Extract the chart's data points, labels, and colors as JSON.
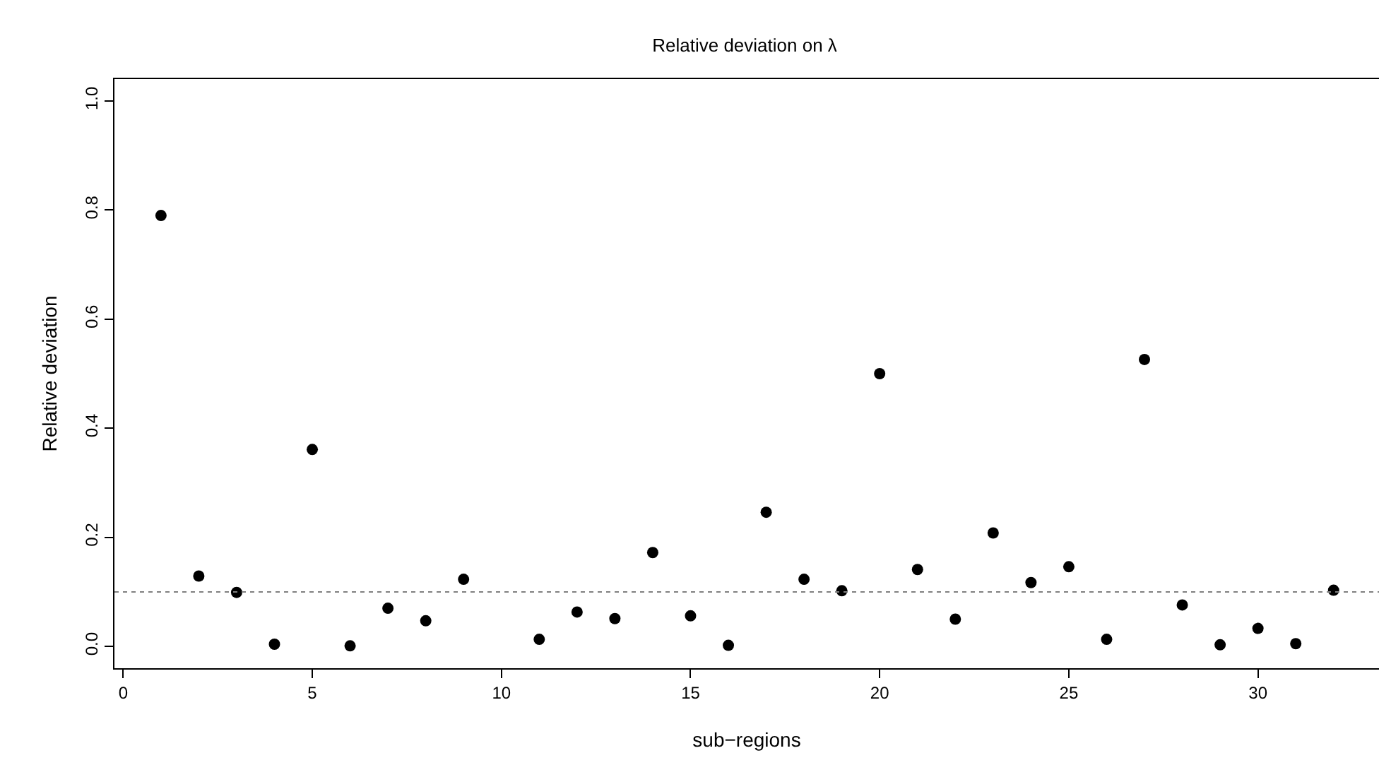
{
  "chart_data": {
    "type": "scatter",
    "title": "Relative deviation on λ",
    "xlabel": "sub−regions",
    "ylabel": "Relative deviation",
    "x": [
      1,
      2,
      3,
      4,
      5,
      6,
      7,
      8,
      9,
      11,
      12,
      13,
      14,
      15,
      16,
      17,
      18,
      19,
      20,
      21,
      22,
      23,
      24,
      25,
      26,
      27,
      28,
      29,
      30,
      31,
      32
    ],
    "series": [
      {
        "color": "#000000",
        "values": [
          0.79,
          0.129,
          0.099,
          0.004,
          0.361,
          0.001,
          0.07,
          0.047,
          0.123,
          0.013,
          0.063,
          0.051,
          0.172,
          0.056,
          0.002,
          0.246,
          0.123,
          0.102,
          0.5,
          0.141,
          0.05,
          0.208,
          0.117,
          0.146,
          0.013,
          0.526,
          0.076,
          0.003,
          0.033,
          0.005,
          0.103
        ]
      }
    ],
    "xlim": [
      -0.23,
      33.2
    ],
    "xticks": [
      0,
      5,
      10,
      15,
      20,
      25,
      30
    ],
    "ylim": [
      -0.04,
      1.04
    ],
    "yticks": [
      {
        "value": 0,
        "label": "0.0"
      },
      {
        "value": 0.2,
        "label": "0.2"
      },
      {
        "value": 0.4,
        "label": "0.4"
      },
      {
        "value": 0.6,
        "label": "0.6"
      },
      {
        "value": 0.8,
        "label": "0.8"
      },
      {
        "value": 1,
        "label": "1.0"
      }
    ],
    "ref_lines": [
      {
        "axis": "y",
        "value": 0.1,
        "color": "#808080",
        "line_style": "dotted"
      }
    ],
    "grid": false,
    "marker": "circle"
  }
}
